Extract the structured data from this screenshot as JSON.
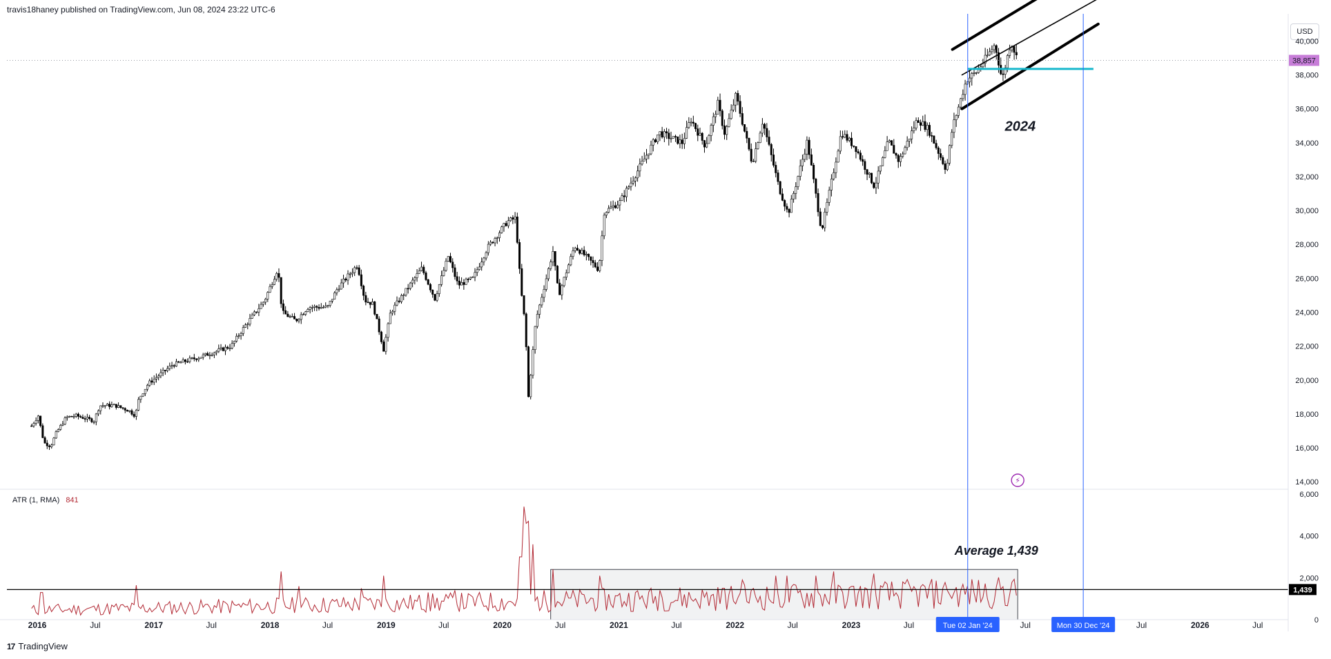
{
  "header": {
    "publisher_text": "travis18haney published on TradingView.com, Jun 08, 2024 23:22 UTC-6"
  },
  "footer": {
    "brand": "TradingView",
    "logo_glyph": "17"
  },
  "toolbar": {
    "currency_button": "USD"
  },
  "annotations": {
    "channel_year_label": "2024",
    "average_label": "Average 1,439",
    "flash_icon": "lightning-icon"
  },
  "markers": {
    "start_date_label": "Tue 02 Jan '24",
    "end_date_label": "Mon 30 Dec '24",
    "accent_color": "#2962ff"
  },
  "colors": {
    "candle_up": "#000000",
    "candle_down": "#000000",
    "atr_line": "#b22833",
    "price_badge": "#c77dd8",
    "support_line": "#16b7cc",
    "value_line": "#000000"
  },
  "chart_data": [
    {
      "type": "candlestick",
      "title": "",
      "xlabel": "",
      "ylabel": "",
      "x_tick_labels": [
        "2016",
        "Jul",
        "2017",
        "Jul",
        "2018",
        "Jul",
        "2019",
        "Jul",
        "2020",
        "Jul",
        "2021",
        "Jul",
        "2022",
        "Jul",
        "2023",
        "Jul",
        "Jul",
        "Jul",
        "2026",
        "Jul"
      ],
      "y_tick_labels": [
        "40,000",
        "38,000",
        "36,000",
        "34,000",
        "32,000",
        "30,000",
        "28,000",
        "26,000",
        "24,000",
        "22,000",
        "20,000",
        "18,000",
        "16,000",
        "14,000"
      ],
      "ylim": [
        13600,
        41400
      ],
      "grid": false,
      "last_price_label": "38,857",
      "last_price": 38857,
      "close_path": [
        [
          "2015-12-14",
          17300
        ],
        [
          "2016-01-04",
          17900
        ],
        [
          "2016-01-22",
          16300
        ],
        [
          "2016-02-12",
          16100
        ],
        [
          "2016-03-01",
          16900
        ],
        [
          "2016-04-01",
          17800
        ],
        [
          "2016-05-01",
          17900
        ],
        [
          "2016-06-27",
          17600
        ],
        [
          "2016-07-15",
          18500
        ],
        [
          "2016-09-01",
          18500
        ],
        [
          "2016-10-15",
          18200
        ],
        [
          "2016-11-04",
          17900
        ],
        [
          "2016-11-15",
          18900
        ],
        [
          "2016-12-15",
          19800
        ],
        [
          "2017-03-01",
          20900
        ],
        [
          "2017-06-01",
          21400
        ],
        [
          "2017-09-01",
          22000
        ],
        [
          "2017-10-15",
          23200
        ],
        [
          "2017-12-15",
          24700
        ],
        [
          "2018-01-26",
          26600
        ],
        [
          "2018-02-08",
          24000
        ],
        [
          "2018-03-23",
          23500
        ],
        [
          "2018-05-01",
          24300
        ],
        [
          "2018-07-01",
          24300
        ],
        [
          "2018-08-01",
          25400
        ],
        [
          "2018-10-03",
          26800
        ],
        [
          "2018-10-26",
          24700
        ],
        [
          "2018-11-20",
          24500
        ],
        [
          "2018-12-24",
          21800
        ],
        [
          "2019-01-15",
          24000
        ],
        [
          "2019-04-23",
          26600
        ],
        [
          "2019-06-03",
          24800
        ],
        [
          "2019-07-15",
          27300
        ],
        [
          "2019-08-15",
          25600
        ],
        [
          "2019-10-01",
          26000
        ],
        [
          "2019-11-15",
          27800
        ],
        [
          "2020-01-17",
          29350
        ],
        [
          "2020-02-12",
          29550
        ],
        [
          "2020-02-28",
          25400
        ],
        [
          "2020-03-13",
          23200
        ],
        [
          "2020-03-23",
          19000
        ],
        [
          "2020-04-15",
          23500
        ],
        [
          "2020-06-08",
          27600
        ],
        [
          "2020-06-26",
          25000
        ],
        [
          "2020-08-15",
          27900
        ],
        [
          "2020-09-25",
          27200
        ],
        [
          "2020-10-30",
          26500
        ],
        [
          "2020-11-16",
          29900
        ],
        [
          "2021-01-04",
          30500
        ],
        [
          "2021-03-15",
          32800
        ],
        [
          "2021-05-07",
          34600
        ],
        [
          "2021-07-19",
          34000
        ],
        [
          "2021-08-15",
          35400
        ],
        [
          "2021-09-30",
          33800
        ],
        [
          "2021-11-08",
          36300
        ],
        [
          "2021-11-30",
          34500
        ],
        [
          "2022-01-04",
          36800
        ],
        [
          "2022-02-24",
          32800
        ],
        [
          "2022-03-29",
          35300
        ],
        [
          "2022-05-20",
          31300
        ],
        [
          "2022-06-17",
          29800
        ],
        [
          "2022-08-16",
          34100
        ],
        [
          "2022-09-30",
          28800
        ],
        [
          "2022-12-01",
          34600
        ],
        [
          "2023-01-15",
          33700
        ],
        [
          "2023-03-15",
          31400
        ],
        [
          "2023-04-28",
          34100
        ],
        [
          "2023-05-31",
          32900
        ],
        [
          "2023-07-28",
          35400
        ],
        [
          "2023-08-31",
          34800
        ],
        [
          "2023-10-27",
          32400
        ],
        [
          "2023-11-15",
          34900
        ],
        [
          "2023-12-29",
          37700
        ],
        [
          "2024-01-31",
          38200
        ],
        [
          "2024-03-28",
          39800
        ],
        [
          "2024-04-19",
          37700
        ],
        [
          "2024-05-17",
          40000
        ],
        [
          "2024-06-07",
          38857
        ]
      ],
      "drawings": {
        "channel_upper": [
          [
            "2023-11-15",
            39500
          ],
          [
            "2025-01-31",
            44500
          ]
        ],
        "channel_middle": [
          [
            "2023-12-15",
            38000
          ],
          [
            "2025-02-15",
            42500
          ]
        ],
        "channel_lower": [
          [
            "2023-12-15",
            36000
          ],
          [
            "2025-02-15",
            41000
          ]
        ],
        "support_level": 38350,
        "support_range": [
          "2024-01-02",
          "2025-01-31"
        ],
        "vertical_markers": [
          "2024-01-02",
          "2024-12-30"
        ]
      }
    },
    {
      "type": "line",
      "title": "ATR (1, RMA)",
      "legend_value": "841",
      "y_tick_labels": [
        "6,000",
        "4,000",
        "2,000",
        "0"
      ],
      "ylim": [
        0,
        6000
      ],
      "reference_line_value": 1439,
      "reference_line_label": "1,439",
      "average_range": [
        "2020-06-01",
        "2024-06-07"
      ],
      "average_box_range": [
        0,
        2400
      ],
      "baseline": 650,
      "spikes": [
        [
          "2016-01-15",
          1300
        ],
        [
          "2016-11-07",
          1650
        ],
        [
          "2018-02-05",
          2300
        ],
        [
          "2018-04-01",
          1600
        ],
        [
          "2018-10-15",
          1500
        ],
        [
          "2018-12-24",
          2100
        ],
        [
          "2019-05-13",
          1300
        ],
        [
          "2019-08-05",
          1400
        ],
        [
          "2020-02-28",
          3000
        ],
        [
          "2020-03-09",
          5400
        ],
        [
          "2020-03-16",
          4600
        ],
        [
          "2020-03-23",
          4700
        ],
        [
          "2020-04-06",
          3600
        ],
        [
          "2020-06-08",
          2400
        ],
        [
          "2020-11-02",
          2100
        ],
        [
          "2021-05-10",
          1400
        ],
        [
          "2021-11-26",
          1500
        ],
        [
          "2022-01-24",
          1900
        ],
        [
          "2022-05-09",
          2100
        ],
        [
          "2022-06-13",
          2100
        ],
        [
          "2022-09-12",
          2100
        ],
        [
          "2022-11-07",
          2300
        ],
        [
          "2023-03-13",
          2200
        ],
        [
          "2023-10-30",
          1400
        ],
        [
          "2024-01-01",
          1600
        ],
        [
          "2024-04-15",
          1450
        ]
      ]
    }
  ]
}
